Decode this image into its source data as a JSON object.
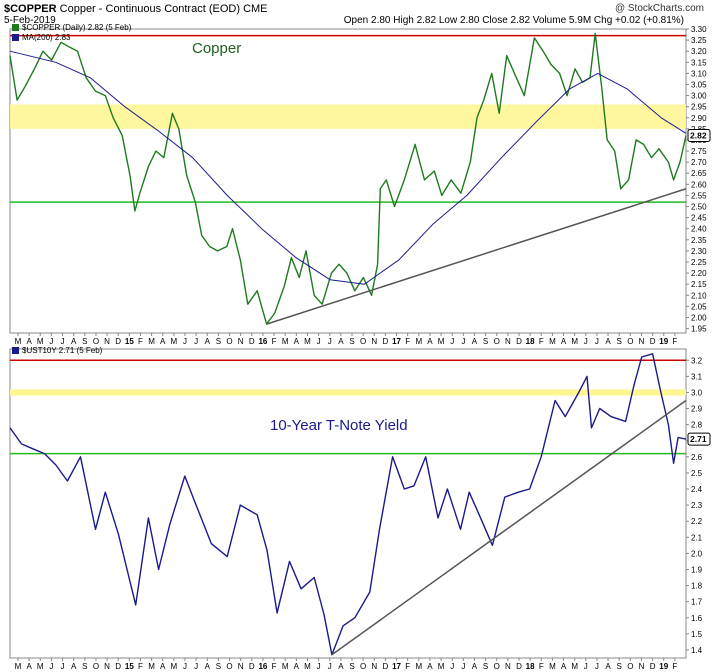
{
  "header": {
    "symbol": "$COPPER",
    "description": "Copper - Continuous Contract (EOD)",
    "exchange": "CME",
    "date": "5-Feb-2019",
    "ohlc": "Open 2.80  High 2.82  Low 2.80  Close 2.82  Volume 5.9M  Chg +0.02 (+0.81%)",
    "watermark": "@ StockCharts.com"
  },
  "chart_data": [
    {
      "type": "line",
      "title": "Copper",
      "legend": [
        "$COPPER (Daily) 2.82 (5 Feb)",
        "MA(200) 2.83"
      ],
      "last_value_label": "2.82",
      "ylim": [
        1.93,
        3.3
      ],
      "y_ticks": [
        "1.95",
        "2.00",
        "2.05",
        "2.10",
        "2.15",
        "2.20",
        "2.25",
        "2.30",
        "2.35",
        "2.40",
        "2.45",
        "2.50",
        "2.55",
        "2.60",
        "2.65",
        "2.70",
        "2.75",
        "2.80",
        "2.85",
        "2.90",
        "2.95",
        "3.00",
        "3.05",
        "3.10",
        "3.15",
        "3.20",
        "3.25",
        "3.30"
      ],
      "x_ticks": [
        "M",
        "A",
        "M",
        "J",
        "J",
        "A",
        "S",
        "O",
        "N",
        "D",
        "15",
        "F",
        "M",
        "A",
        "M",
        "J",
        "J",
        "A",
        "S",
        "O",
        "N",
        "D",
        "16",
        "F",
        "M",
        "A",
        "M",
        "J",
        "J",
        "A",
        "S",
        "O",
        "N",
        "D",
        "17",
        "F",
        "M",
        "A",
        "M",
        "J",
        "J",
        "A",
        "S",
        "O",
        "N",
        "D",
        "18",
        "F",
        "M",
        "A",
        "M",
        "J",
        "J",
        "A",
        "S",
        "O",
        "N",
        "D",
        "19",
        "F"
      ],
      "x_range": [
        "2014-03-01",
        "2019-02-05"
      ],
      "series": [
        {
          "name": "$COPPER",
          "color": "#1f7a1f",
          "points": [
            [
              "2014-03-01",
              3.18
            ],
            [
              "2014-03-20",
              2.98
            ],
            [
              "2014-04-10",
              3.04
            ],
            [
              "2014-05-05",
              3.12
            ],
            [
              "2014-05-28",
              3.2
            ],
            [
              "2014-06-20",
              3.16
            ],
            [
              "2014-07-15",
              3.24
            ],
            [
              "2014-08-05",
              3.22
            ],
            [
              "2014-08-28",
              3.2
            ],
            [
              "2014-09-20",
              3.08
            ],
            [
              "2014-10-15",
              3.02
            ],
            [
              "2014-11-10",
              3.0
            ],
            [
              "2014-12-01",
              2.9
            ],
            [
              "2014-12-25",
              2.82
            ],
            [
              "2015-01-15",
              2.64
            ],
            [
              "2015-01-28",
              2.48
            ],
            [
              "2015-02-10",
              2.56
            ],
            [
              "2015-03-05",
              2.68
            ],
            [
              "2015-03-25",
              2.75
            ],
            [
              "2015-04-15",
              2.72
            ],
            [
              "2015-05-08",
              2.92
            ],
            [
              "2015-05-25",
              2.85
            ],
            [
              "2015-06-15",
              2.64
            ],
            [
              "2015-07-08",
              2.52
            ],
            [
              "2015-07-25",
              2.37
            ],
            [
              "2015-08-15",
              2.32
            ],
            [
              "2015-09-05",
              2.3
            ],
            [
              "2015-09-30",
              2.32
            ],
            [
              "2015-10-15",
              2.4
            ],
            [
              "2015-11-05",
              2.26
            ],
            [
              "2015-11-25",
              2.06
            ],
            [
              "2015-12-20",
              2.12
            ],
            [
              "2016-01-14",
              1.97
            ],
            [
              "2016-02-05",
              2.02
            ],
            [
              "2016-03-01",
              2.14
            ],
            [
              "2016-03-20",
              2.27
            ],
            [
              "2016-04-10",
              2.18
            ],
            [
              "2016-04-28",
              2.3
            ],
            [
              "2016-05-20",
              2.1
            ],
            [
              "2016-06-10",
              2.06
            ],
            [
              "2016-07-05",
              2.2
            ],
            [
              "2016-07-25",
              2.24
            ],
            [
              "2016-08-15",
              2.2
            ],
            [
              "2016-09-05",
              2.12
            ],
            [
              "2016-09-28",
              2.18
            ],
            [
              "2016-10-20",
              2.1
            ],
            [
              "2016-11-05",
              2.24
            ],
            [
              "2016-11-12",
              2.58
            ],
            [
              "2016-11-28",
              2.62
            ],
            [
              "2016-12-20",
              2.5
            ],
            [
              "2017-01-15",
              2.62
            ],
            [
              "2017-02-13",
              2.78
            ],
            [
              "2017-03-10",
              2.62
            ],
            [
              "2017-04-05",
              2.66
            ],
            [
              "2017-04-25",
              2.55
            ],
            [
              "2017-05-20",
              2.62
            ],
            [
              "2017-06-15",
              2.56
            ],
            [
              "2017-07-10",
              2.7
            ],
            [
              "2017-07-28",
              2.9
            ],
            [
              "2017-08-15",
              2.98
            ],
            [
              "2017-09-05",
              3.1
            ],
            [
              "2017-09-25",
              2.92
            ],
            [
              "2017-10-15",
              3.18
            ],
            [
              "2017-11-10",
              3.08
            ],
            [
              "2017-12-01",
              3.0
            ],
            [
              "2017-12-28",
              3.26
            ],
            [
              "2018-01-20",
              3.2
            ],
            [
              "2018-02-10",
              3.14
            ],
            [
              "2018-03-05",
              3.1
            ],
            [
              "2018-03-25",
              3.0
            ],
            [
              "2018-04-15",
              3.12
            ],
            [
              "2018-05-05",
              3.06
            ],
            [
              "2018-05-25",
              3.08
            ],
            [
              "2018-06-08",
              3.28
            ],
            [
              "2018-06-25",
              3.04
            ],
            [
              "2018-07-10",
              2.8
            ],
            [
              "2018-07-30",
              2.75
            ],
            [
              "2018-08-15",
              2.58
            ],
            [
              "2018-09-05",
              2.62
            ],
            [
              "2018-09-25",
              2.8
            ],
            [
              "2018-10-15",
              2.78
            ],
            [
              "2018-11-05",
              2.72
            ],
            [
              "2018-11-25",
              2.76
            ],
            [
              "2018-12-20",
              2.7
            ],
            [
              "2019-01-03",
              2.62
            ],
            [
              "2019-01-20",
              2.7
            ],
            [
              "2019-02-05",
              2.82
            ]
          ]
        },
        {
          "name": "MA(200)",
          "color": "#1a1a8c",
          "points": [
            [
              "2014-03-01",
              3.2
            ],
            [
              "2014-07-01",
              3.15
            ],
            [
              "2014-10-01",
              3.08
            ],
            [
              "2015-01-01",
              2.95
            ],
            [
              "2015-04-01",
              2.84
            ],
            [
              "2015-07-01",
              2.72
            ],
            [
              "2015-10-01",
              2.55
            ],
            [
              "2016-01-01",
              2.4
            ],
            [
              "2016-04-01",
              2.27
            ],
            [
              "2016-07-01",
              2.17
            ],
            [
              "2016-10-01",
              2.15
            ],
            [
              "2017-01-01",
              2.26
            ],
            [
              "2017-04-01",
              2.42
            ],
            [
              "2017-07-01",
              2.55
            ],
            [
              "2017-10-01",
              2.72
            ],
            [
              "2018-01-01",
              2.88
            ],
            [
              "2018-04-01",
              3.03
            ],
            [
              "2018-06-15",
              3.1
            ],
            [
              "2018-09-01",
              3.03
            ],
            [
              "2018-12-01",
              2.9
            ],
            [
              "2019-02-05",
              2.83
            ]
          ]
        }
      ],
      "annotations": [
        {
          "type": "hline",
          "y": 3.27,
          "color": "#cc0000"
        },
        {
          "type": "hline",
          "y": 2.52,
          "color": "#22bb22"
        },
        {
          "type": "band",
          "y1": 2.85,
          "y2": 2.96,
          "color": "#fff68f"
        },
        {
          "type": "trendline",
          "from": [
            "2016-01-14",
            1.97
          ],
          "to": [
            "2019-02-05",
            2.58
          ],
          "color": "#555555"
        }
      ]
    },
    {
      "type": "line",
      "title": "10-Year T-Note Yield",
      "legend": [
        "$UST10Y 2.71 (5 Feb)"
      ],
      "last_value_label": "2.71",
      "ylim": [
        1.35,
        3.27
      ],
      "y_ticks": [
        "1.4",
        "1.5",
        "1.6",
        "1.7",
        "1.8",
        "1.9",
        "2.0",
        "2.1",
        "2.2",
        "2.3",
        "2.4",
        "2.5",
        "2.6",
        "2.7",
        "2.8",
        "2.9",
        "3.0",
        "3.1",
        "3.2"
      ],
      "x_ticks": [
        "M",
        "A",
        "M",
        "J",
        "J",
        "A",
        "S",
        "O",
        "N",
        "D",
        "15",
        "F",
        "M",
        "A",
        "M",
        "J",
        "J",
        "A",
        "S",
        "O",
        "N",
        "D",
        "16",
        "F",
        "M",
        "A",
        "M",
        "J",
        "J",
        "A",
        "S",
        "O",
        "N",
        "D",
        "17",
        "F",
        "M",
        "A",
        "M",
        "J",
        "J",
        "A",
        "S",
        "O",
        "N",
        "D",
        "18",
        "F",
        "M",
        "A",
        "M",
        "J",
        "J",
        "A",
        "S",
        "O",
        "N",
        "D",
        "19",
        "F"
      ],
      "x_range": [
        "2014-03-01",
        "2019-02-05"
      ],
      "series": [
        {
          "name": "$UST10Y",
          "color": "#1a1a8c",
          "points": [
            [
              "2014-03-01",
              2.78
            ],
            [
              "2014-04-01",
              2.68
            ],
            [
              "2014-05-01",
              2.65
            ],
            [
              "2014-06-01",
              2.62
            ],
            [
              "2014-07-01",
              2.55
            ],
            [
              "2014-08-01",
              2.45
            ],
            [
              "2014-09-05",
              2.6
            ],
            [
              "2014-10-15",
              2.15
            ],
            [
              "2014-11-10",
              2.38
            ],
            [
              "2014-12-15",
              2.12
            ],
            [
              "2015-01-30",
              1.68
            ],
            [
              "2015-03-05",
              2.22
            ],
            [
              "2015-04-01",
              1.9
            ],
            [
              "2015-05-01",
              2.18
            ],
            [
              "2015-06-10",
              2.48
            ],
            [
              "2015-07-10",
              2.3
            ],
            [
              "2015-08-20",
              2.06
            ],
            [
              "2015-10-01",
              1.98
            ],
            [
              "2015-11-05",
              2.3
            ],
            [
              "2015-12-20",
              2.24
            ],
            [
              "2016-01-15",
              2.02
            ],
            [
              "2016-02-11",
              1.63
            ],
            [
              "2016-03-15",
              1.95
            ],
            [
              "2016-04-15",
              1.78
            ],
            [
              "2016-05-20",
              1.85
            ],
            [
              "2016-06-15",
              1.62
            ],
            [
              "2016-07-06",
              1.37
            ],
            [
              "2016-08-05",
              1.55
            ],
            [
              "2016-09-05",
              1.6
            ],
            [
              "2016-10-15",
              1.76
            ],
            [
              "2016-11-10",
              2.15
            ],
            [
              "2016-12-15",
              2.6
            ],
            [
              "2017-01-15",
              2.4
            ],
            [
              "2017-02-10",
              2.42
            ],
            [
              "2017-03-13",
              2.6
            ],
            [
              "2017-04-15",
              2.22
            ],
            [
              "2017-05-10",
              2.4
            ],
            [
              "2017-06-14",
              2.15
            ],
            [
              "2017-07-07",
              2.38
            ],
            [
              "2017-08-01",
              2.25
            ],
            [
              "2017-09-07",
              2.05
            ],
            [
              "2017-10-10",
              2.35
            ],
            [
              "2017-11-15",
              2.38
            ],
            [
              "2017-12-15",
              2.4
            ],
            [
              "2018-01-15",
              2.6
            ],
            [
              "2018-02-21",
              2.95
            ],
            [
              "2018-03-20",
              2.85
            ],
            [
              "2018-04-25",
              3.0
            ],
            [
              "2018-05-17",
              3.1
            ],
            [
              "2018-05-29",
              2.78
            ],
            [
              "2018-06-20",
              2.9
            ],
            [
              "2018-07-20",
              2.85
            ],
            [
              "2018-08-28",
              2.82
            ],
            [
              "2018-09-20",
              3.05
            ],
            [
              "2018-10-10",
              3.22
            ],
            [
              "2018-11-08",
              3.24
            ],
            [
              "2018-11-30",
              3.0
            ],
            [
              "2018-12-20",
              2.8
            ],
            [
              "2019-01-03",
              2.56
            ],
            [
              "2019-01-15",
              2.72
            ],
            [
              "2019-02-05",
              2.71
            ]
          ]
        }
      ],
      "annotations": [
        {
          "type": "hline",
          "y": 3.2,
          "color": "#cc0000"
        },
        {
          "type": "hline",
          "y": 3.0,
          "color": "#fff68f"
        },
        {
          "type": "hline",
          "y": 2.62,
          "color": "#22bb22"
        },
        {
          "type": "trendline",
          "from": [
            "2016-07-06",
            1.37
          ],
          "to": [
            "2019-02-05",
            2.95
          ],
          "color": "#555555"
        }
      ]
    }
  ]
}
